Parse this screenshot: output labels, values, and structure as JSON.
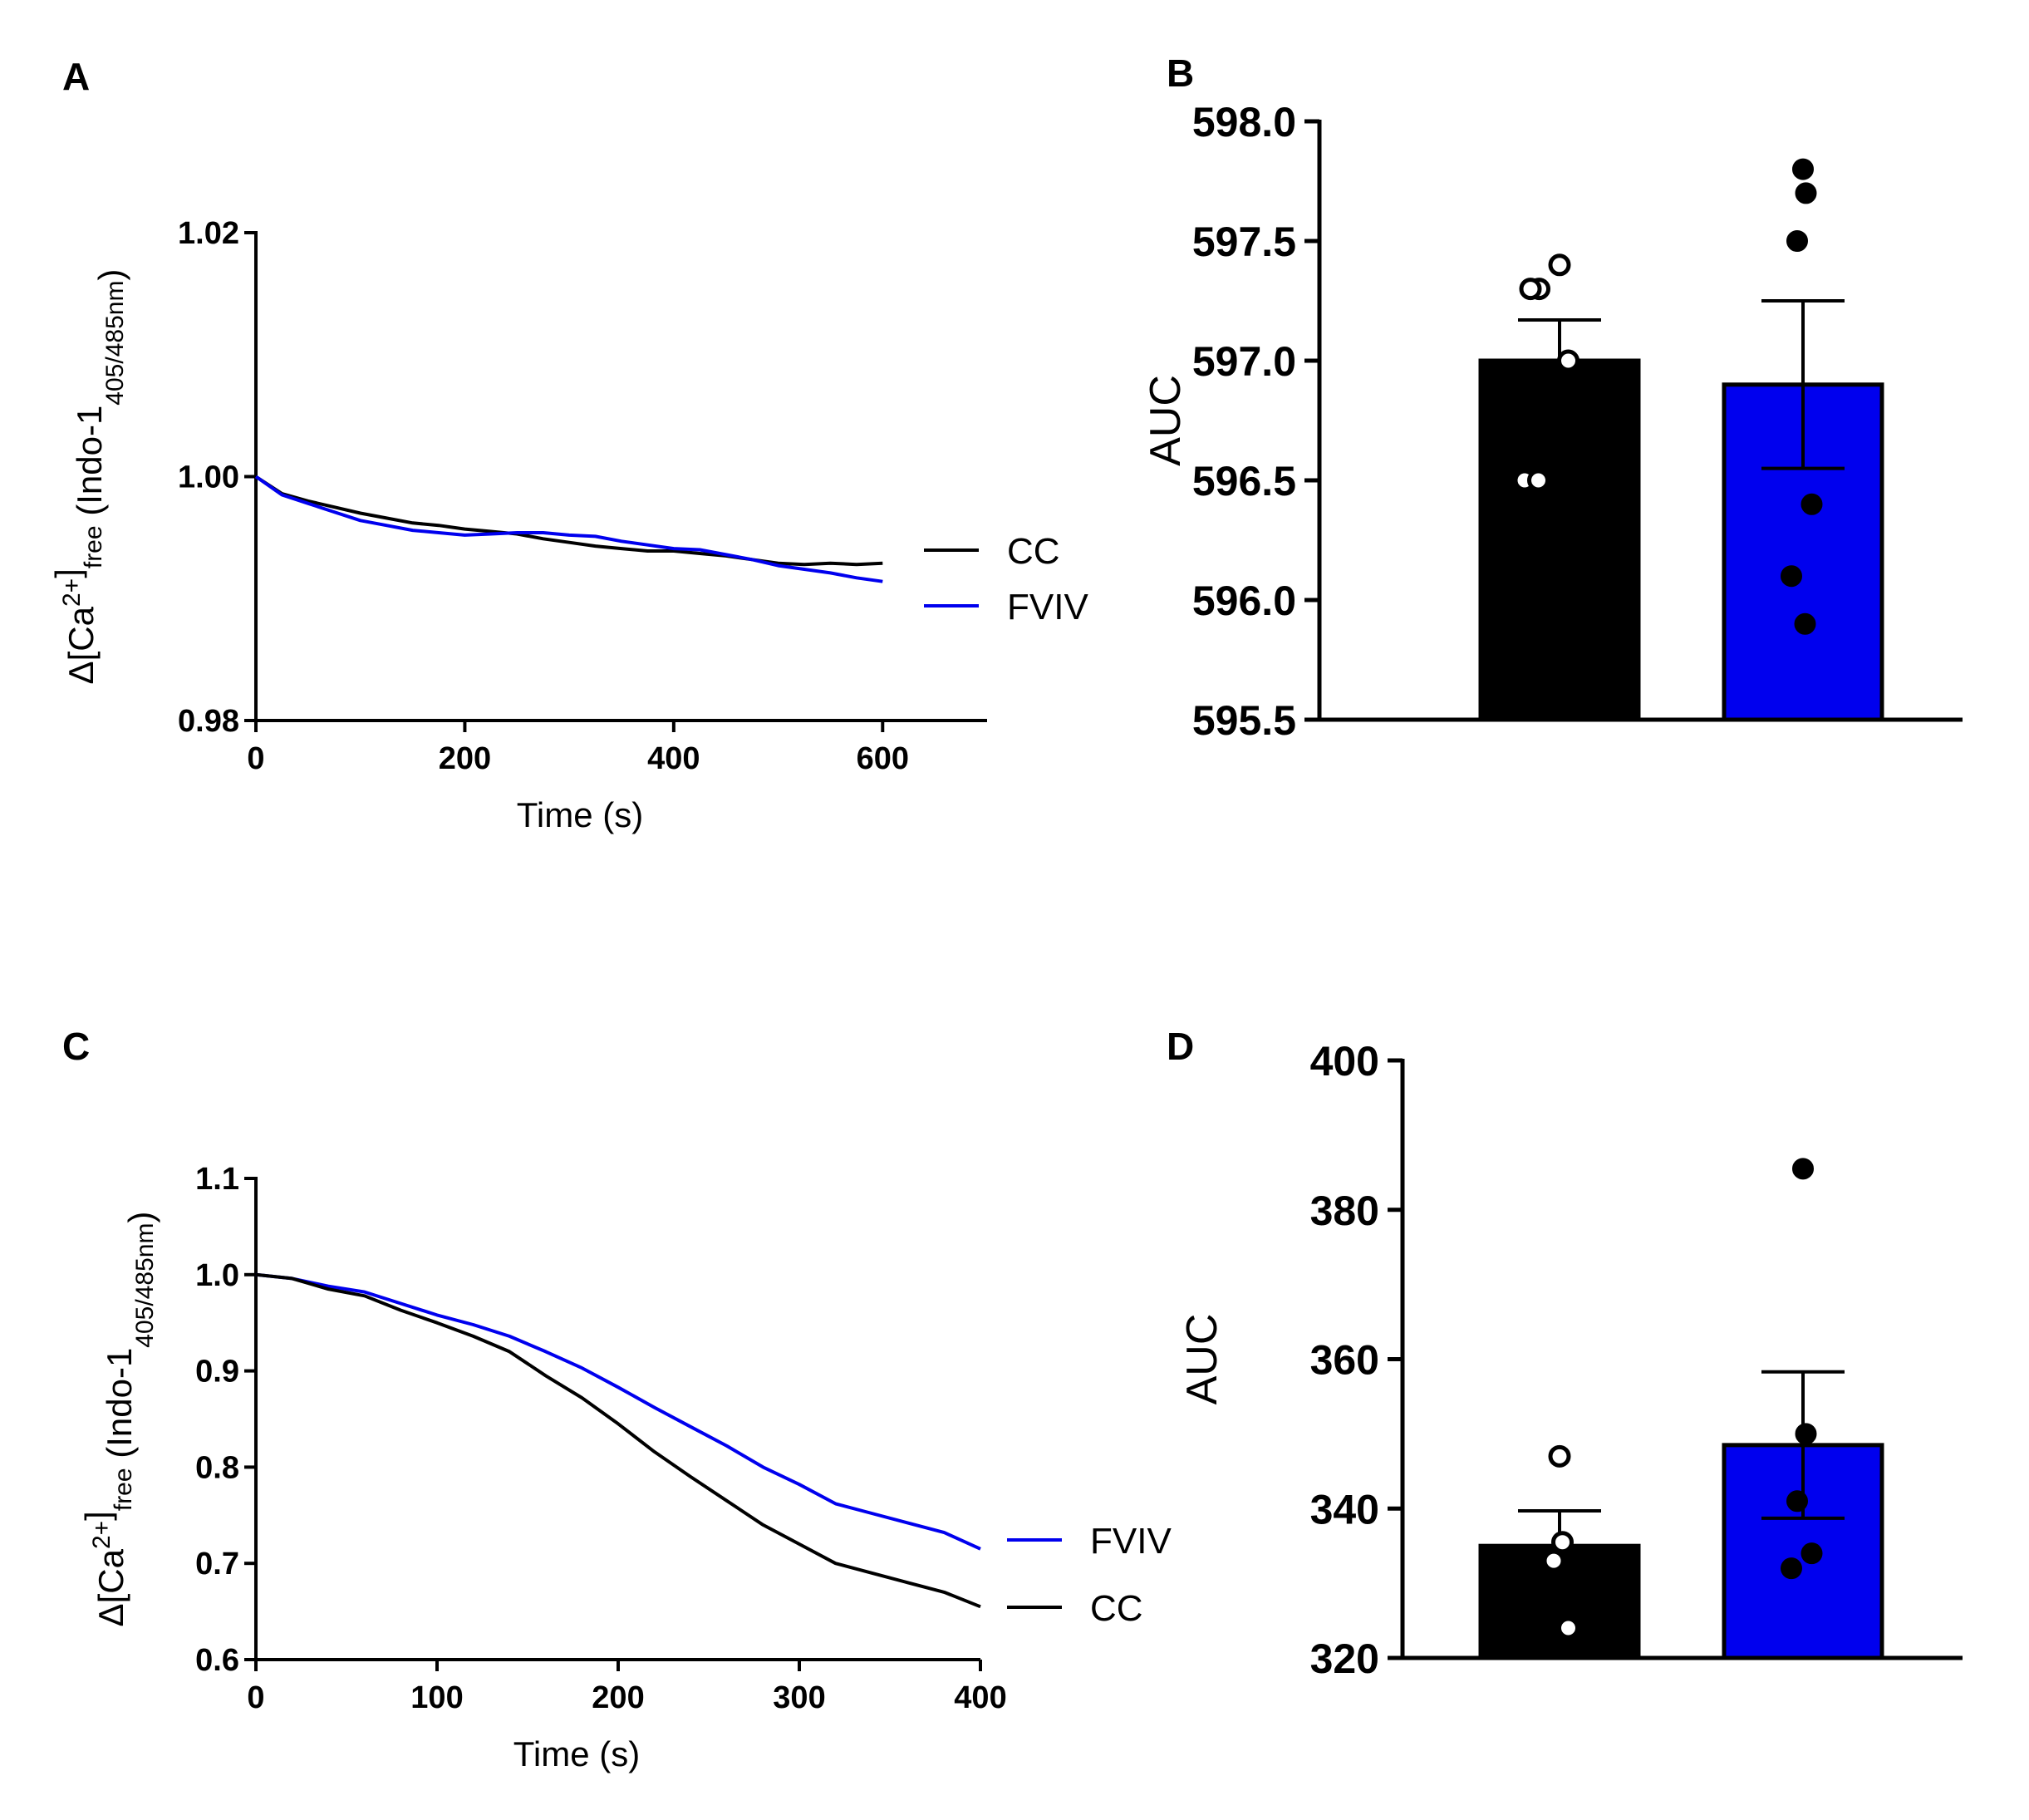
{
  "chart_data": [
    {
      "panel": "A",
      "type": "line",
      "xlabel": "Time (s)",
      "ylabel": {
        "prefix": "Δ[Ca",
        "sup": "2+",
        "close": "]",
        "sub": "free",
        "mid": " (Indo-1",
        "sub2": "405/485nm",
        "suffix": ")"
      },
      "xlim": [
        0,
        700
      ],
      "ylim": [
        0.98,
        1.02
      ],
      "xticks": [
        0,
        200,
        400,
        600
      ],
      "xtick_labels": [
        "0",
        "200",
        "400",
        "600"
      ],
      "yticks": [
        0.98,
        1.0,
        1.02
      ],
      "ytick_labels": [
        "0.98",
        "1.00",
        "1.02"
      ],
      "series": [
        {
          "name": "CC",
          "color": "#000000",
          "x": [
            0,
            25,
            50,
            75,
            100,
            125,
            150,
            175,
            200,
            225,
            250,
            275,
            300,
            325,
            350,
            375,
            400,
            425,
            450,
            475,
            500,
            525,
            550,
            575,
            600
          ],
          "y": [
            1.0,
            0.9986,
            0.998,
            0.9975,
            0.997,
            0.9966,
            0.9962,
            0.996,
            0.9957,
            0.9955,
            0.9953,
            0.9949,
            0.9946,
            0.9943,
            0.9941,
            0.9939,
            0.9939,
            0.9937,
            0.9935,
            0.9932,
            0.9929,
            0.9928,
            0.9929,
            0.9928,
            0.9929
          ]
        },
        {
          "name": "FVIV",
          "color": "#0000ee",
          "x": [
            0,
            25,
            50,
            75,
            100,
            125,
            150,
            175,
            200,
            225,
            250,
            275,
            300,
            325,
            350,
            375,
            400,
            425,
            450,
            475,
            500,
            525,
            550,
            575,
            600
          ],
          "y": [
            1.0,
            0.9985,
            0.9978,
            0.9971,
            0.9964,
            0.996,
            0.9956,
            0.9954,
            0.9952,
            0.9953,
            0.9954,
            0.9954,
            0.9952,
            0.9951,
            0.9947,
            0.9944,
            0.9941,
            0.994,
            0.9936,
            0.9932,
            0.9927,
            0.9924,
            0.9921,
            0.9917,
            0.9914
          ]
        }
      ],
      "legend": [
        {
          "label": "CC",
          "color": "#000000"
        },
        {
          "label": "FVIV",
          "color": "#0000ee"
        }
      ]
    },
    {
      "panel": "B",
      "type": "bar",
      "ylabel": "AUC",
      "ylim": [
        595.5,
        598.0
      ],
      "yticks": [
        595.5,
        596.0,
        596.5,
        597.0,
        597.5,
        598.0
      ],
      "ytick_labels": [
        "595.5",
        "596.0",
        "596.5",
        "597.0",
        "597.5",
        "598.0"
      ],
      "bars": [
        {
          "name": "CC",
          "value": 597.0,
          "sem": 0.17,
          "color": "#000000",
          "points": [
            597.4,
            597.3,
            597.3,
            597.0,
            596.5,
            596.5
          ],
          "point_style": "open"
        },
        {
          "name": "FVIV",
          "value": 596.9,
          "sem": 0.35,
          "color": "#0000ee",
          "points": [
            597.8,
            597.7,
            597.5,
            596.4,
            596.1,
            595.9
          ],
          "point_style": "filled"
        }
      ]
    },
    {
      "panel": "C",
      "type": "line",
      "xlabel": "Time (s)",
      "ylabel": {
        "prefix": "Δ[Ca",
        "sup": "2+",
        "close": "]",
        "sub": "free",
        "mid": " (Indo-1",
        "sub2": "405/485nm",
        "suffix": ")"
      },
      "xlim": [
        0,
        400
      ],
      "ylim": [
        0.6,
        1.1
      ],
      "xticks": [
        0,
        100,
        200,
        300,
        400
      ],
      "xtick_labels": [
        "0",
        "100",
        "200",
        "300",
        "400"
      ],
      "yticks": [
        0.6,
        0.7,
        0.8,
        0.9,
        1.0,
        1.1
      ],
      "ytick_labels": [
        "0.6",
        "0.7",
        "0.8",
        "0.9",
        "1.0",
        "1.1"
      ],
      "series": [
        {
          "name": "FVIV",
          "color": "#0000ee",
          "x": [
            0,
            20,
            40,
            60,
            80,
            100,
            120,
            140,
            160,
            180,
            200,
            220,
            240,
            260,
            280,
            300,
            320,
            340,
            360,
            380,
            400
          ],
          "y": [
            1.0,
            0.996,
            0.988,
            0.982,
            0.97,
            0.958,
            0.948,
            0.936,
            0.92,
            0.903,
            0.883,
            0.862,
            0.842,
            0.822,
            0.8,
            0.782,
            0.762,
            0.752,
            0.742,
            0.732,
            0.715
          ]
        },
        {
          "name": "CC",
          "color": "#000000",
          "x": [
            0,
            20,
            40,
            60,
            80,
            100,
            120,
            140,
            160,
            180,
            200,
            220,
            240,
            260,
            280,
            300,
            320,
            340,
            360,
            380,
            400
          ],
          "y": [
            1.0,
            0.996,
            0.985,
            0.978,
            0.963,
            0.95,
            0.936,
            0.92,
            0.895,
            0.872,
            0.845,
            0.816,
            0.79,
            0.765,
            0.74,
            0.72,
            0.7,
            0.69,
            0.68,
            0.67,
            0.655
          ]
        }
      ],
      "legend": [
        {
          "label": "FVIV",
          "color": "#0000ee"
        },
        {
          "label": "CC",
          "color": "#000000"
        }
      ]
    },
    {
      "panel": "D",
      "type": "bar",
      "ylabel": "AUC",
      "ylim": [
        320,
        400
      ],
      "yticks": [
        320,
        340,
        360,
        380,
        400
      ],
      "ytick_labels": [
        "320",
        "340",
        "360",
        "380",
        "400"
      ],
      "bars": [
        {
          "name": "CC",
          "value": 335.0,
          "sem": 4.7,
          "color": "#000000",
          "points": [
            347.0,
            335.5,
            333.0,
            324.0
          ],
          "point_style": "open"
        },
        {
          "name": "FVIV",
          "value": 348.5,
          "sem": 9.8,
          "color": "#0000ee",
          "points": [
            385.5,
            350.0,
            341.0,
            334.0,
            332.0
          ],
          "point_style": "filled"
        }
      ]
    }
  ]
}
